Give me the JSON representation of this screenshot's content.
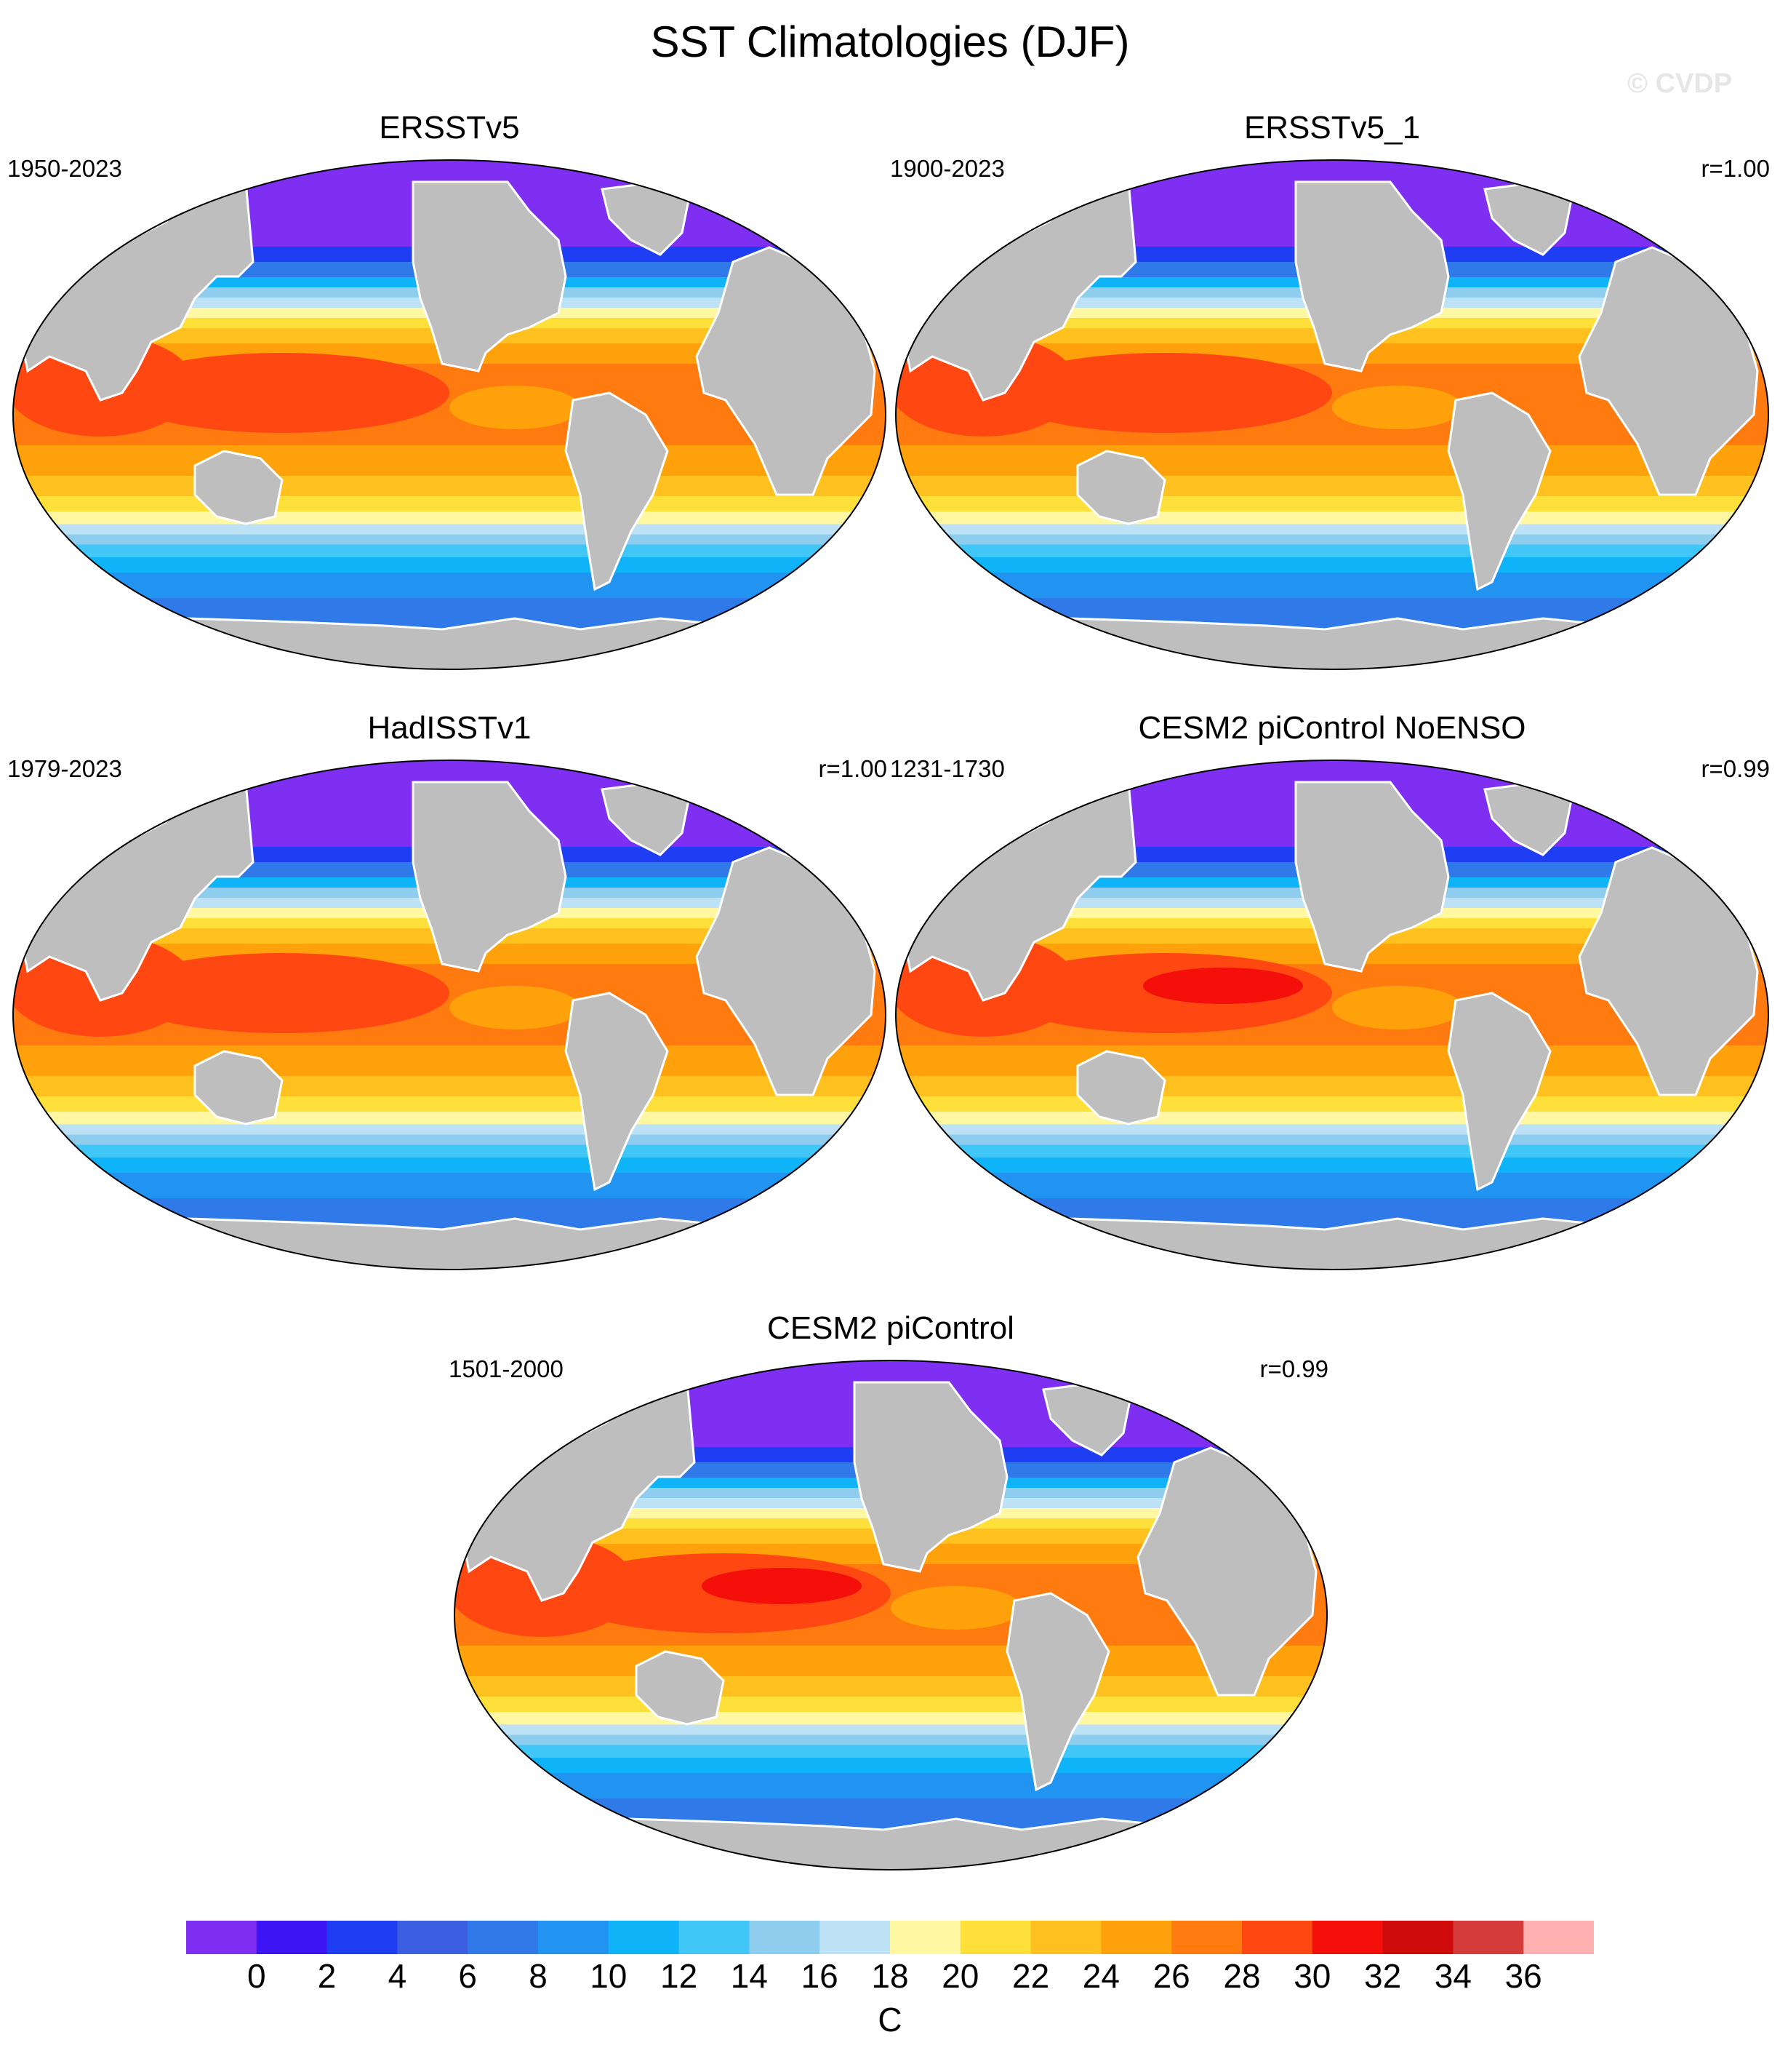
{
  "title": "SST Climatologies (DJF)",
  "watermark": "© CVDP",
  "panels": [
    {
      "title": "ERSSTv5",
      "period": "1950-2023",
      "corr": ""
    },
    {
      "title": "ERSSTv5_1",
      "period": "1900-2023",
      "corr": "r=1.00"
    },
    {
      "title": "HadISSTv1",
      "period": "1979-2023",
      "corr": "r=1.00"
    },
    {
      "title": "CESM2 piControl NoENSO",
      "period": "1231-1730",
      "corr": "r=0.99"
    },
    {
      "title": "CESM2 piControl",
      "period": "1501-2000",
      "corr": "r=0.99"
    }
  ],
  "colorbar": {
    "unit": "C",
    "tick_labels": [
      "0",
      "2",
      "4",
      "6",
      "8",
      "10",
      "12",
      "14",
      "16",
      "18",
      "20",
      "22",
      "24",
      "26",
      "28",
      "30",
      "32",
      "34",
      "36"
    ],
    "colors": [
      "#7f2ff2",
      "#3d15f5",
      "#1f3df2",
      "#3b5fe0",
      "#2f7ae8",
      "#2194f2",
      "#0fb3f7",
      "#40c6f7",
      "#8ecdee",
      "#bde2f6",
      "#fff7a1",
      "#ffe03a",
      "#ffc11f",
      "#ffa10a",
      "#ff7a0f",
      "#ff4712",
      "#f50f0a",
      "#cf0a0a",
      "#d63b3b",
      "#ffb0b0"
    ]
  },
  "land_color": "#bebebe"
}
